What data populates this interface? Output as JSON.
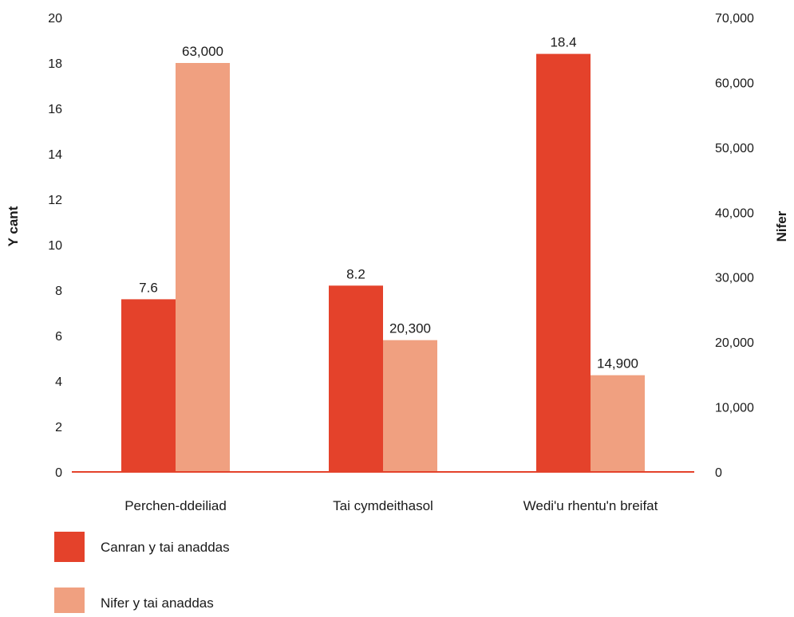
{
  "chart_data": {
    "type": "bar",
    "categories": [
      "Perchen-ddeiliad",
      "Tai cymdeithasol",
      "Wedi'u rhentu'n breifat"
    ],
    "series": [
      {
        "name": "Canran y tai anaddas",
        "axis": "left",
        "color": "#e4422b",
        "values": [
          7.6,
          8.2,
          18.4
        ],
        "labels": [
          "7.6",
          "8.2",
          "18.4"
        ]
      },
      {
        "name": "Nifer y tai anaddas",
        "axis": "right",
        "color": "#f0a080",
        "values": [
          63000,
          20300,
          14900
        ],
        "labels": [
          "63,000",
          "20,300",
          "14,900"
        ]
      }
    ],
    "ylabel": "Y cant",
    "y2label": "Nifer",
    "ylim": [
      0,
      20
    ],
    "y2lim": [
      0,
      70000
    ],
    "yticks": [
      "0",
      "2",
      "4",
      "6",
      "8",
      "10",
      "12",
      "14",
      "16",
      "18",
      "20"
    ],
    "y2ticks": [
      "0",
      "10,000",
      "20,000",
      "30,000",
      "40,000",
      "50,000",
      "60,000",
      "70,000"
    ],
    "grid": false,
    "legend_position": "bottom-left",
    "axis_line_color": "#e4422b"
  }
}
